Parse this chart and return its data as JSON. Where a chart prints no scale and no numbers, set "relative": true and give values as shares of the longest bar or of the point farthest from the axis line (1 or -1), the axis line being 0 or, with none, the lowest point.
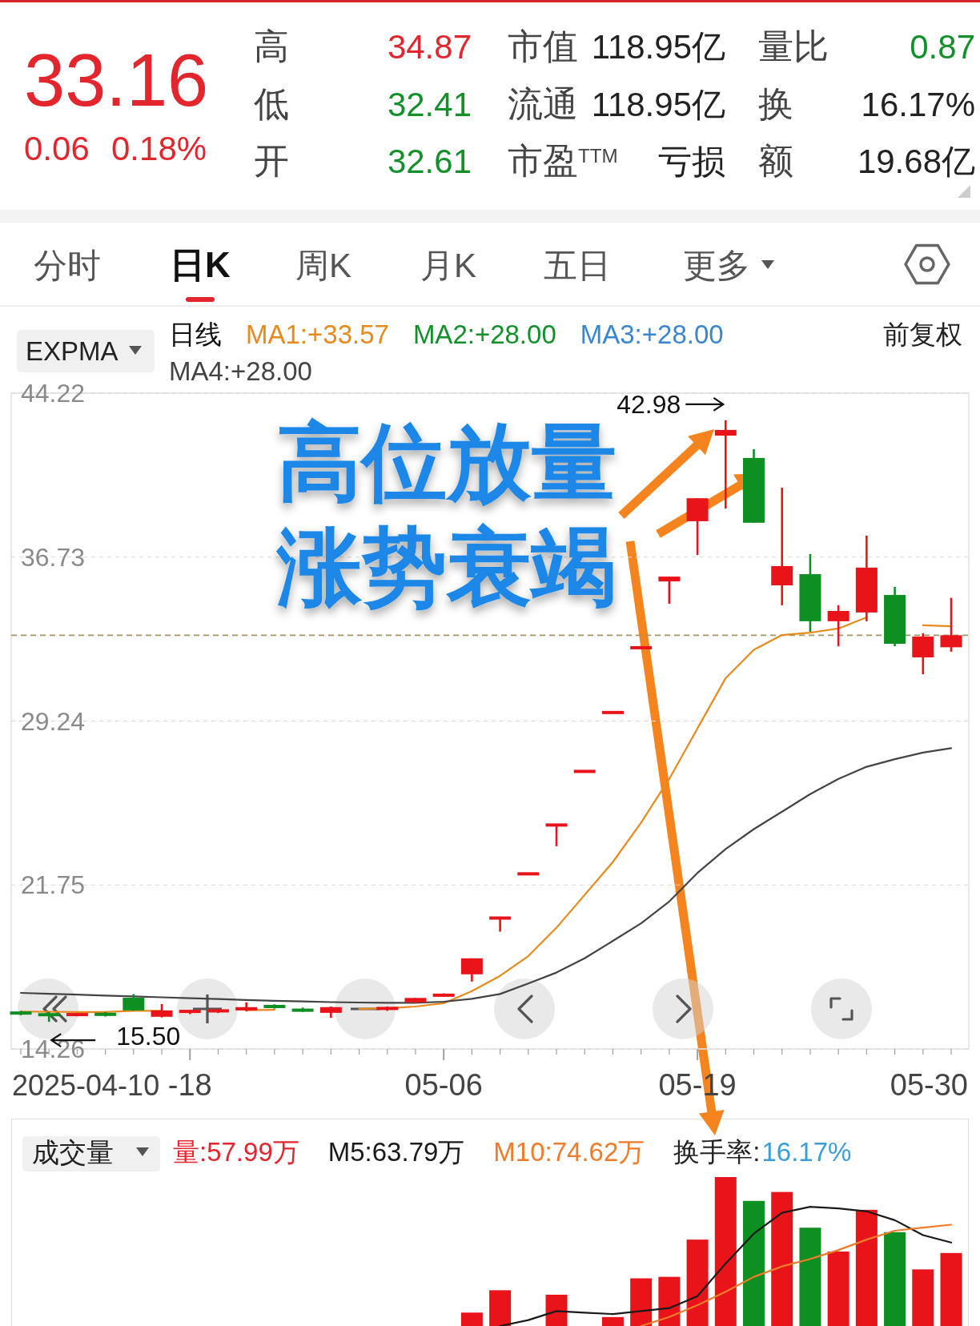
{
  "chart_data": [
    {
      "type": "other",
      "annotations": [
        "33.16",
        "0.06",
        "0.18%",
        "高",
        "34.87",
        "市值",
        "118.95亿",
        "量比",
        "0.87",
        "低",
        "32.41",
        "流通",
        "118.95亿",
        "换",
        "16.17%",
        "开",
        "32.61",
        "市盈$^{TTM}$",
        "亏损",
        "额",
        "19.68亿",
        "分时",
        "日K",
        "周K",
        "月K",
        "五日",
        "更多"
      ]
    },
    {
      "type": "candlestick",
      "categories": [
        null,
        null,
        null,
        null,
        null,
        null,
        "-18",
        null,
        null,
        null,
        null,
        null,
        null,
        null,
        null,
        "05-06",
        null,
        null,
        null,
        null,
        null,
        null,
        null,
        null,
        "05-19",
        null,
        null,
        null,
        null,
        null,
        null,
        null,
        null,
        null
      ],
      "ohlc": [
        [
          15.92,
          16.0,
          15.8,
          15.88
        ],
        [
          15.85,
          15.95,
          15.5,
          15.8
        ],
        [
          15.8,
          15.9,
          15.75,
          15.86
        ],
        [
          15.9,
          15.95,
          15.74,
          15.78
        ],
        [
          16.6,
          16.77,
          16.0,
          16.02
        ],
        [
          15.73,
          16.31,
          15.7,
          16.02
        ],
        [
          15.95,
          16.05,
          15.85,
          16.0
        ],
        [
          15.95,
          16.1,
          15.9,
          16.05
        ],
        [
          16.02,
          16.39,
          15.98,
          16.17
        ],
        [
          16.25,
          16.3,
          16.1,
          16.15
        ],
        [
          16.08,
          16.15,
          15.95,
          15.98
        ],
        [
          15.91,
          16.2,
          15.68,
          16.17
        ],
        null,
        [
          16.05,
          16.2,
          16.0,
          16.17
        ],
        [
          16.39,
          16.59,
          16.35,
          16.59
        ],
        [
          16.7,
          16.8,
          16.65,
          16.73
        ],
        [
          17.67,
          18.4,
          17.34,
          18.4
        ],
        [
          20.24,
          20.24,
          19.62,
          20.24
        ],
        [
          22.26,
          22.26,
          22.26,
          22.26
        ],
        [
          24.49,
          24.49,
          23.52,
          24.49
        ],
        [
          26.94,
          26.94,
          26.94,
          26.94
        ],
        [
          29.63,
          29.63,
          29.63,
          29.63
        ],
        [
          32.59,
          32.59,
          32.59,
          32.59
        ],
        [
          35.62,
          35.84,
          34.6,
          35.84
        ],
        [
          38.37,
          39.42,
          36.83,
          39.42
        ],
        [
          42.28,
          42.98,
          38.95,
          42.54
        ],
        [
          41.26,
          41.66,
          38.3,
          38.3
        ],
        [
          35.44,
          39.9,
          34.53,
          36.32
        ],
        [
          35.95,
          36.87,
          33.32,
          33.8
        ],
        [
          33.8,
          34.53,
          32.66,
          34.27
        ],
        [
          34.2,
          37.71,
          33.8,
          36.25
        ],
        [
          35.0,
          35.37,
          32.66,
          32.77
        ],
        [
          32.15,
          33.25,
          31.38,
          33.1
        ],
        [
          32.61,
          34.87,
          32.41,
          33.16
        ]
      ],
      "colors": [
        "#0e8f22",
        "#0e8f22",
        "#e8141a",
        "#0e8f22",
        "#0e8f22",
        "#e8141a",
        "#e8141a",
        "#e8141a",
        "#e8141a",
        "#0e8f22",
        "#0e8f22",
        "#e8141a",
        null,
        "#e8141a",
        "#e8141a",
        "#e8141a",
        "#e8141a",
        "#e8141a",
        "#e8141a",
        "#e8141a",
        "#e8141a",
        "#e8141a",
        "#e8141a",
        "#e8141a",
        "#e8141a",
        "#e8141a",
        "#0e8f22",
        "#e8141a",
        "#0e8f22",
        "#e8141a",
        "#e8141a",
        "#0e8f22",
        "#e8141a",
        "#e8141a"
      ],
      "series": [
        {
          "name": "MA1:+33.57",
          "type": "line",
          "color": "#e8891c",
          "values": [
            15.97,
            15.96,
            15.95,
            15.95,
            16.0,
            16.0,
            null,
            null,
            16.03,
            16.05,
            null,
            null,
            16.08,
            16.12,
            16.2,
            16.35,
            16.9,
            17.6,
            18.5,
            19.8,
            21.3,
            22.8,
            24.6,
            26.6,
            28.9,
            31.2,
            32.5,
            33.17,
            33.28,
            33.47,
            33.98,
            null,
            33.62,
            33.57
          ]
        },
        {
          "name": "MA2:+28.00",
          "type": "line",
          "color": "#12902a",
          "values": [
            null,
            null,
            null,
            null,
            null,
            null,
            null,
            null,
            null,
            null,
            null,
            null,
            null,
            null,
            null,
            null,
            null,
            null,
            null,
            null,
            null,
            null,
            null,
            null,
            null,
            null,
            null,
            null,
            null,
            null,
            null,
            null,
            null,
            null
          ]
        },
        {
          "name": "MA3:+28.00",
          "type": "line",
          "color": "#3a86d0",
          "values": [
            null,
            null,
            null,
            null,
            null,
            null,
            null,
            null,
            null,
            null,
            null,
            null,
            null,
            null,
            null,
            null,
            null,
            null,
            null,
            null,
            null,
            null,
            null,
            null,
            null,
            null,
            null,
            null,
            null,
            null,
            null,
            null,
            null,
            null
          ]
        },
        {
          "name": "MA4:+28.00",
          "type": "line",
          "color": "#444444",
          "values": [
            16.82,
            16.78,
            16.74,
            16.7,
            16.66,
            16.62,
            16.58,
            16.54,
            16.5,
            16.46,
            16.43,
            16.4,
            16.38,
            16.37,
            16.37,
            16.42,
            16.55,
            16.77,
            17.25,
            17.75,
            18.4,
            19.2,
            20.0,
            21.0,
            22.3,
            23.39,
            24.3,
            25.1,
            25.9,
            26.6,
            27.15,
            27.5,
            27.8,
            28.0
          ]
        }
      ],
      "ylim": [
        14.26,
        44.22
      ],
      "yticks": [
        44.22,
        36.73,
        29.24,
        21.75,
        14.26
      ],
      "grid": "y",
      "legend": "top left",
      "legend_title": "日线",
      "ref_lines": [
        {
          "axis": "y",
          "value": 33.16,
          "color": "#a3955e",
          "line_style": "dashed"
        }
      ],
      "annotations": [
        "高位放量",
        "涨势衰竭",
        "42.98",
        "15.50",
        "EXPMA",
        "前复权",
        "2025-04-10",
        "05-30"
      ]
    },
    {
      "type": "bar",
      "relative": true,
      "categories": [
        null,
        null,
        null,
        null,
        null,
        null,
        null,
        null,
        null,
        null,
        null,
        null,
        null,
        null,
        null,
        null,
        null,
        null,
        null,
        null,
        null,
        null,
        null,
        null,
        null,
        null,
        null,
        null,
        null,
        null,
        null,
        null,
        null,
        null
      ],
      "series": [
        {
          "name": "量:57.99万",
          "type": "bar",
          "color": "#e3262d",
          "colors": [
            null,
            null,
            null,
            null,
            null,
            null,
            null,
            null,
            null,
            null,
            null,
            null,
            null,
            null,
            null,
            null,
            "#e8141a",
            "#e8141a",
            null,
            "#e8141a",
            null,
            "#e8141a",
            "#e8141a",
            "#e8141a",
            "#e8141a",
            "#e8141a",
            "#0e8f22",
            "#e8141a",
            "#0e8f22",
            "#e8141a",
            "#e8141a",
            "#0e8f22",
            "#e8141a",
            "#e8141a"
          ],
          "values": [
            null,
            null,
            null,
            null,
            null,
            null,
            null,
            null,
            null,
            null,
            null,
            null,
            null,
            null,
            null,
            null,
            0.09,
            0.24,
            null,
            0.21,
            null,
            0.06,
            0.32,
            0.33,
            0.58,
            1,
            0.84,
            0.9,
            0.66,
            0.5,
            0.78,
            0.63,
            0.38,
            0.49
          ]
        },
        {
          "name": "M5:63.79万",
          "type": "line",
          "color": "#1a1a1a",
          "values": [
            null,
            null,
            null,
            null,
            null,
            null,
            null,
            null,
            null,
            null,
            null,
            null,
            null,
            null,
            null,
            null,
            null,
            0,
            0.04,
            0.1,
            0.09,
            0.08,
            0.1,
            0.12,
            0.2,
            0.42,
            0.62,
            0.76,
            0.8,
            0.79,
            0.77,
            0.71,
            0.61,
            0.56
          ]
        },
        {
          "name": "M10:74.62万",
          "type": "line",
          "color": "#f07b2a",
          "values": [
            null,
            null,
            null,
            null,
            null,
            null,
            null,
            null,
            null,
            null,
            null,
            null,
            null,
            null,
            null,
            null,
            null,
            null,
            null,
            null,
            null,
            null,
            0,
            0.06,
            0.14,
            0.23,
            0.33,
            0.4,
            0.45,
            0.51,
            0.58,
            0.64,
            0.66,
            0.68
          ]
        }
      ],
      "legend": "top left",
      "annotations": [
        "成交量",
        "换手率:",
        "16.17%"
      ]
    }
  ]
}
